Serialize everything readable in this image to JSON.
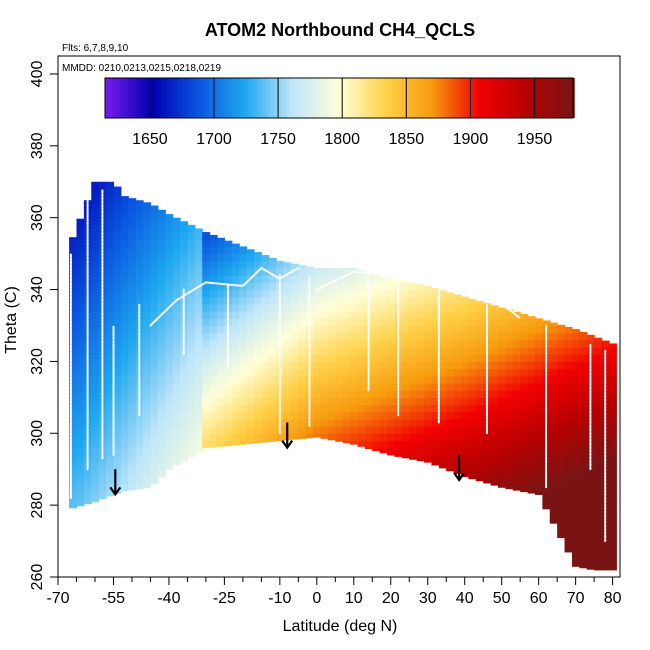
{
  "chart_data": {
    "type": "heatmap",
    "title": "ATOM2 Northbound CH4_QCLS",
    "annotations": [
      "Flts: 6,7,8,9,10",
      "MMDD: 0210,0213,0215,0218,0219"
    ],
    "xlabel": "Latitude (deg N)",
    "ylabel": "Theta (C)",
    "xlim": [
      -70,
      82
    ],
    "ylim": [
      260,
      405
    ],
    "x_ticks": [
      -70,
      -55,
      -40,
      -25,
      -10,
      0,
      10,
      20,
      30,
      40,
      50,
      60,
      70,
      80
    ],
    "x_tick_labels": [
      "-70",
      "-55",
      "-40",
      "-25",
      "-10",
      "0",
      "10",
      "20",
      "30",
      "40",
      "50",
      "60",
      "70",
      "80"
    ],
    "x_minor_ticks": [
      -65,
      -60,
      -50,
      -45,
      -35,
      -30,
      -20,
      -15,
      -5,
      5,
      15,
      25,
      35,
      45,
      55,
      65,
      75
    ],
    "y_ticks": [
      260,
      280,
      300,
      320,
      340,
      360,
      380,
      400
    ],
    "y_tick_labels": [
      "260",
      "280",
      "300",
      "320",
      "340",
      "360",
      "380",
      "400"
    ],
    "colorbar": {
      "range": [
        1615,
        1980
      ],
      "ticks": [
        1650,
        1700,
        1750,
        1800,
        1850,
        1900,
        1950
      ],
      "tick_labels": [
        "1650",
        "1700",
        "1750",
        "1800",
        "1850",
        "1900",
        "1950"
      ],
      "colors": [
        "#7a1cf0",
        "#0000b0",
        "#0a55e0",
        "#1fa8f0",
        "#bfe6fa",
        "#ffffd8",
        "#ffd24a",
        "#f79a0d",
        "#f20000",
        "#b50000",
        "#7a1414"
      ]
    },
    "field_model": {
      "description": "CH4 (ppb) vs latitude and theta",
      "value_at_lat_-65": 1700,
      "value_at_lat_-20": 1790,
      "value_at_lat_0": 1830,
      "value_at_lat_40": 1870,
      "value_at_lat_80": 1915,
      "theta_gradient_per_K": -2.4,
      "reference_theta": 320
    },
    "data_envelope": {
      "lat": [
        -67,
        -60,
        -55,
        -52,
        -45,
        -40,
        -30,
        -20,
        -10,
        0,
        10,
        20,
        30,
        40,
        50,
        60,
        70,
        75,
        80,
        81
      ],
      "theta_top": [
        352,
        370,
        370,
        366,
        364,
        361,
        356,
        352,
        348,
        346,
        346,
        343,
        341,
        338,
        335,
        332,
        329,
        327,
        325,
        320
      ],
      "theta_bottom": [
        279,
        281,
        283,
        284,
        285,
        290,
        296,
        297,
        298,
        299,
        297,
        294,
        292,
        288,
        285,
        283,
        263,
        262,
        262,
        262
      ]
    },
    "flight_tracks": [
      {
        "lat": [
          -66.5,
          -66.5
        ],
        "theta": [
          282,
          350
        ]
      },
      {
        "lat": [
          -62,
          -62
        ],
        "theta": [
          290,
          366
        ]
      },
      {
        "lat": [
          -58,
          -58
        ],
        "theta": [
          293,
          368
        ]
      },
      {
        "lat": [
          -55,
          -55
        ],
        "theta": [
          294,
          330
        ]
      },
      {
        "lat": [
          -48,
          -48
        ],
        "theta": [
          305,
          336
        ]
      },
      {
        "lat": [
          -45,
          -38,
          -30,
          -20,
          -15,
          -10,
          -5
        ],
        "theta": [
          330,
          337,
          342,
          341,
          346,
          343,
          346
        ]
      },
      {
        "lat": [
          0,
          10,
          20,
          30,
          40,
          50,
          55
        ],
        "theta": [
          340,
          345,
          344,
          342,
          340,
          336,
          332
        ]
      },
      {
        "lat": [
          -36,
          -36
        ],
        "theta": [
          322,
          340
        ]
      },
      {
        "lat": [
          -24,
          -24
        ],
        "theta": [
          318,
          341
        ]
      },
      {
        "lat": [
          -10,
          -10
        ],
        "theta": [
          300,
          344
        ]
      },
      {
        "lat": [
          -2,
          -2
        ],
        "theta": [
          302,
          343
        ]
      },
      {
        "lat": [
          14,
          14
        ],
        "theta": [
          312,
          344
        ]
      },
      {
        "lat": [
          22,
          22
        ],
        "theta": [
          305,
          342
        ]
      },
      {
        "lat": [
          33,
          33
        ],
        "theta": [
          303,
          340
        ]
      },
      {
        "lat": [
          46,
          46
        ],
        "theta": [
          300,
          336
        ]
      },
      {
        "lat": [
          62,
          62
        ],
        "theta": [
          285,
          330
        ]
      },
      {
        "lat": [
          74,
          74
        ],
        "theta": [
          290,
          325
        ]
      },
      {
        "lat": [
          78,
          78
        ],
        "theta": [
          270,
          323
        ]
      }
    ],
    "arrows": [
      {
        "lat": -54.5,
        "theta_from": 290,
        "theta_to": 283
      },
      {
        "lat": -8,
        "theta_from": 303,
        "theta_to": 296
      },
      {
        "lat": 38.5,
        "theta_from": 294,
        "theta_to": 287
      }
    ]
  }
}
